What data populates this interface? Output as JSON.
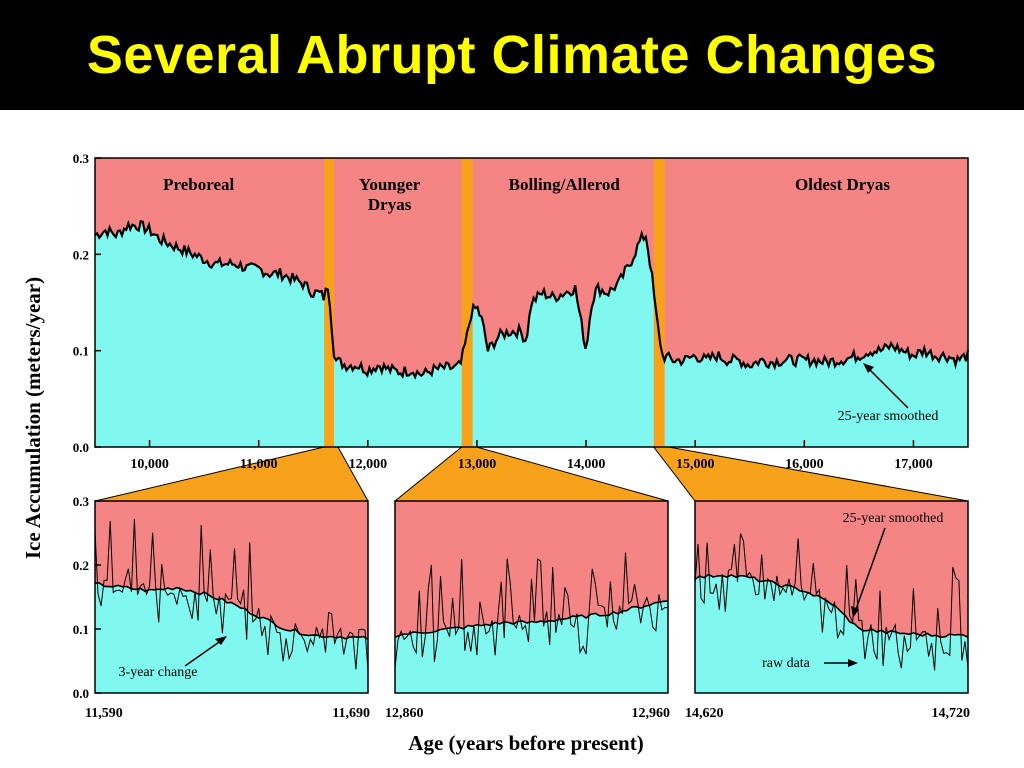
{
  "slide": {
    "title": "Several Abrupt Climate Changes"
  },
  "colors": {
    "background": "#ffffff",
    "title_bar": "#000000",
    "title_text": "#ffff00",
    "upper_fill": "#f58585",
    "lower_fill": "#80f8f0",
    "transition_band": "#f7a21a",
    "line": "#000000"
  },
  "figure": {
    "ylabel": "Ice Accumulation (meters/year)",
    "xlabel": "Age (years before present)"
  },
  "chart_data": [
    {
      "type": "area",
      "panel": "top",
      "xlim": [
        9500,
        17500
      ],
      "ylim": [
        0,
        0.3
      ],
      "yticks": [
        0.0,
        0.1,
        0.2,
        0.3
      ],
      "ytick_labels": [
        "0.0",
        "0.1",
        "0.2",
        "0.3"
      ],
      "xticks": [
        10000,
        11000,
        12000,
        13000,
        14000,
        15000,
        16000,
        17000
      ],
      "xtick_labels": [
        "10,000",
        "11,000",
        "12,000",
        "13,000",
        "14,000",
        "15,000",
        "16,000",
        "17,000"
      ],
      "period_labels": [
        {
          "lines": [
            "Preboreal"
          ],
          "x": 10450
        },
        {
          "lines": [
            "Younger",
            "Dryas"
          ],
          "x": 12200
        },
        {
          "lines": [
            "Bolling/Allerod"
          ],
          "x": 13800
        },
        {
          "lines": [
            "Oldest Dryas"
          ],
          "x": 16350
        }
      ],
      "transitions": [
        {
          "from": 11600,
          "to": 11690
        },
        {
          "from": 12860,
          "to": 12960
        },
        {
          "from": 14620,
          "to": 14720
        }
      ],
      "series": [
        {
          "x": [
            9500,
            9600,
            9700,
            9800,
            9900,
            10000,
            10100,
            10200,
            10300,
            10400,
            10500,
            10600,
            10700,
            10800,
            10900,
            11000,
            11100,
            11200,
            11300,
            11400,
            11500,
            11550,
            11600,
            11640,
            11680,
            11700,
            11800,
            11900,
            12000,
            12100,
            12200,
            12300,
            12400,
            12500,
            12600,
            12700,
            12800,
            12850,
            12900,
            12950,
            13000,
            13050,
            13100,
            13200,
            13300,
            13400,
            13450,
            13500,
            13600,
            13700,
            13800,
            13900,
            14000,
            14050,
            14100,
            14200,
            14300,
            14400,
            14500,
            14550,
            14600,
            14650,
            14700,
            14800,
            14900,
            15000,
            15100,
            15200,
            15300,
            15400,
            15500,
            15600,
            15700,
            15800,
            15900,
            16000,
            16100,
            16200,
            16300,
            16400,
            16500,
            16600,
            16700,
            16800,
            16900,
            17000,
            17100,
            17200,
            17300,
            17400,
            17500
          ],
          "y": [
            0.22,
            0.225,
            0.22,
            0.23,
            0.23,
            0.225,
            0.215,
            0.21,
            0.205,
            0.2,
            0.195,
            0.19,
            0.19,
            0.19,
            0.185,
            0.185,
            0.18,
            0.18,
            0.175,
            0.17,
            0.16,
            0.16,
            0.155,
            0.17,
            0.11,
            0.09,
            0.085,
            0.085,
            0.08,
            0.085,
            0.08,
            0.078,
            0.08,
            0.075,
            0.08,
            0.082,
            0.082,
            0.085,
            0.11,
            0.14,
            0.145,
            0.13,
            0.1,
            0.115,
            0.12,
            0.12,
            0.11,
            0.15,
            0.16,
            0.155,
            0.16,
            0.165,
            0.1,
            0.15,
            0.165,
            0.16,
            0.17,
            0.19,
            0.215,
            0.22,
            0.18,
            0.13,
            0.095,
            0.09,
            0.09,
            0.095,
            0.09,
            0.095,
            0.09,
            0.09,
            0.085,
            0.09,
            0.088,
            0.09,
            0.09,
            0.09,
            0.09,
            0.088,
            0.09,
            0.092,
            0.095,
            0.1,
            0.1,
            0.105,
            0.1,
            0.095,
            0.1,
            0.095,
            0.095,
            0.09,
            0.095
          ]
        }
      ],
      "annotations": [
        {
          "text": "25-year smoothed"
        }
      ]
    },
    {
      "type": "area",
      "panel": "bottom-left",
      "xlim": [
        11590,
        11690
      ],
      "ylim": [
        0,
        0.3
      ],
      "yticks": [
        0.0,
        0.1,
        0.2,
        0.3
      ],
      "ytick_labels": [
        "0.0",
        "0.1",
        "0.2",
        "0.3"
      ],
      "xtick_labels": [
        "11,590",
        "11,690"
      ],
      "series": [
        {
          "x": [
            11590,
            11600,
            11610,
            11620,
            11630,
            11640,
            11650,
            11660,
            11670,
            11680,
            11690
          ],
          "y": [
            0.17,
            0.165,
            0.16,
            0.165,
            0.155,
            0.14,
            0.12,
            0.1,
            0.09,
            0.088,
            0.085
          ]
        }
      ],
      "annotations": [
        {
          "text": "3-year change"
        }
      ]
    },
    {
      "type": "area",
      "panel": "bottom-middle",
      "xlim": [
        12860,
        12960
      ],
      "ylim": [
        0,
        0.3
      ],
      "xtick_labels": [
        "12,860",
        "12,960"
      ],
      "series": [
        {
          "x": [
            12860,
            12870,
            12880,
            12890,
            12900,
            12910,
            12920,
            12930,
            12940,
            12950,
            12960
          ],
          "y": [
            0.09,
            0.095,
            0.1,
            0.105,
            0.11,
            0.11,
            0.115,
            0.12,
            0.125,
            0.135,
            0.145
          ]
        }
      ]
    },
    {
      "type": "area",
      "panel": "bottom-right",
      "xlim": [
        14620,
        14720
      ],
      "ylim": [
        0,
        0.3
      ],
      "xtick_labels": [
        "14,620",
        "14,720"
      ],
      "series": [
        {
          "x": [
            14620,
            14630,
            14640,
            14650,
            14660,
            14670,
            14680,
            14690,
            14700,
            14710,
            14720
          ],
          "y": [
            0.18,
            0.185,
            0.18,
            0.17,
            0.16,
            0.14,
            0.1,
            0.095,
            0.092,
            0.09,
            0.09
          ]
        }
      ],
      "annotations": [
        {
          "text": "25-year smoothed"
        },
        {
          "text": "raw data"
        }
      ]
    }
  ]
}
